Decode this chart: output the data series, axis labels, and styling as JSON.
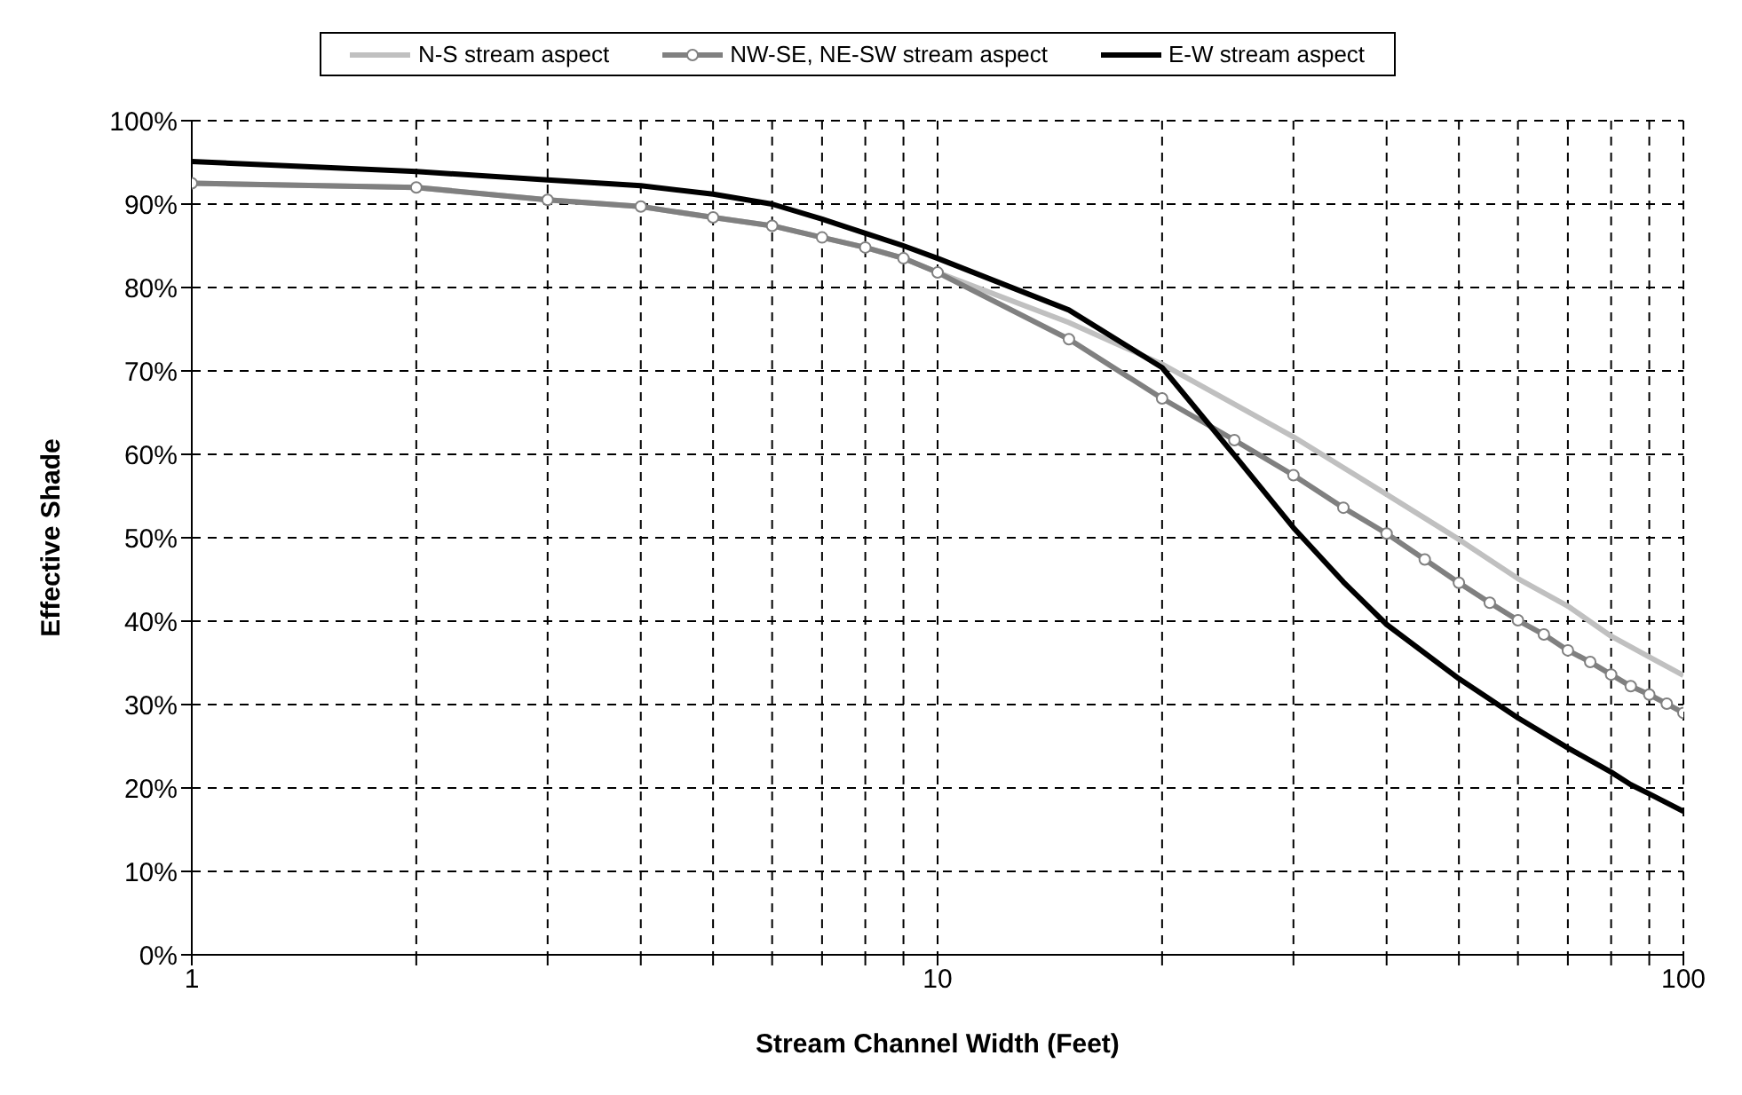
{
  "chart_data": {
    "type": "line",
    "xlabel": "Stream Channel Width (Feet)",
    "ylabel": "Effective Shade",
    "log": "x",
    "grid": true,
    "legend": "top",
    "line_style": "solid",
    "xlim": [
      1,
      100
    ],
    "xticks": [
      1,
      {
        "value": 2,
        "label": null
      },
      {
        "value": 3,
        "label": null
      },
      {
        "value": 4,
        "label": null
      },
      {
        "value": 5,
        "label": null
      },
      {
        "value": 6,
        "label": null
      },
      {
        "value": 7,
        "label": null
      },
      {
        "value": 8,
        "label": null
      },
      {
        "value": 9,
        "label": null
      },
      10,
      {
        "value": 20,
        "label": null
      },
      {
        "value": 30,
        "label": null
      },
      {
        "value": 40,
        "label": null
      },
      {
        "value": 50,
        "label": null
      },
      {
        "value": 60,
        "label": null
      },
      {
        "value": 70,
        "label": null
      },
      {
        "value": 80,
        "label": null
      },
      {
        "value": 90,
        "label": null
      },
      100
    ],
    "ylim": [
      0,
      100
    ],
    "yticks": [
      {
        "value": 0,
        "label": "0%"
      },
      {
        "value": 10,
        "label": "10%"
      },
      {
        "value": 20,
        "label": "20%"
      },
      {
        "value": 30,
        "label": "30%"
      },
      {
        "value": 40,
        "label": "40%"
      },
      {
        "value": 50,
        "label": "50%"
      },
      {
        "value": 60,
        "label": "60%"
      },
      {
        "value": 70,
        "label": "70%"
      },
      {
        "value": 80,
        "label": "80%"
      },
      {
        "value": 90,
        "label": "90%"
      },
      {
        "value": 100,
        "label": "100%"
      }
    ],
    "series": [
      {
        "name": "N-S stream aspect",
        "color": "#c0c0c0",
        "marker": "none",
        "x": [
          1,
          2,
          3,
          4,
          5,
          6,
          7,
          8,
          9,
          10,
          15,
          20,
          30,
          40,
          50,
          60,
          70,
          80,
          90,
          100
        ],
        "values": [
          92.5,
          92.0,
          90.5,
          89.7,
          88.4,
          87.4,
          86.0,
          84.8,
          83.5,
          81.8,
          75.8,
          70.8,
          62.1,
          55.2,
          49.8,
          45.1,
          41.8,
          38.2,
          35.7,
          33.5
        ]
      },
      {
        "name": "NW-SE, NE-SW stream aspect",
        "color": "#808080",
        "marker": "circle",
        "x": [
          1,
          2,
          3,
          4,
          5,
          6,
          7,
          8,
          9,
          10,
          15,
          20,
          25,
          30,
          35,
          40,
          45,
          50,
          55,
          60,
          65,
          70,
          75,
          80,
          85,
          90,
          95,
          100
        ],
        "values": [
          92.5,
          92.0,
          90.5,
          89.7,
          88.4,
          87.4,
          86.0,
          84.8,
          83.5,
          81.8,
          73.8,
          66.7,
          61.7,
          57.5,
          53.6,
          50.5,
          47.4,
          44.6,
          42.2,
          40.1,
          38.4,
          36.5,
          35.1,
          33.6,
          32.2,
          31.2,
          30.1,
          29.0
        ]
      },
      {
        "name": "E-W stream aspect",
        "color": "#000000",
        "marker": "none",
        "x": [
          1,
          2,
          3,
          4,
          5,
          6,
          7,
          8,
          9,
          10,
          15,
          20,
          25,
          30,
          35,
          40,
          50,
          60,
          70,
          80,
          85,
          90,
          100
        ],
        "values": [
          95.1,
          93.9,
          92.9,
          92.2,
          91.2,
          90.0,
          88.2,
          86.5,
          85.0,
          83.5,
          77.3,
          70.4,
          59.9,
          51.2,
          44.7,
          39.6,
          33.1,
          28.4,
          24.8,
          21.9,
          20.4,
          19.3,
          17.2
        ]
      }
    ]
  }
}
